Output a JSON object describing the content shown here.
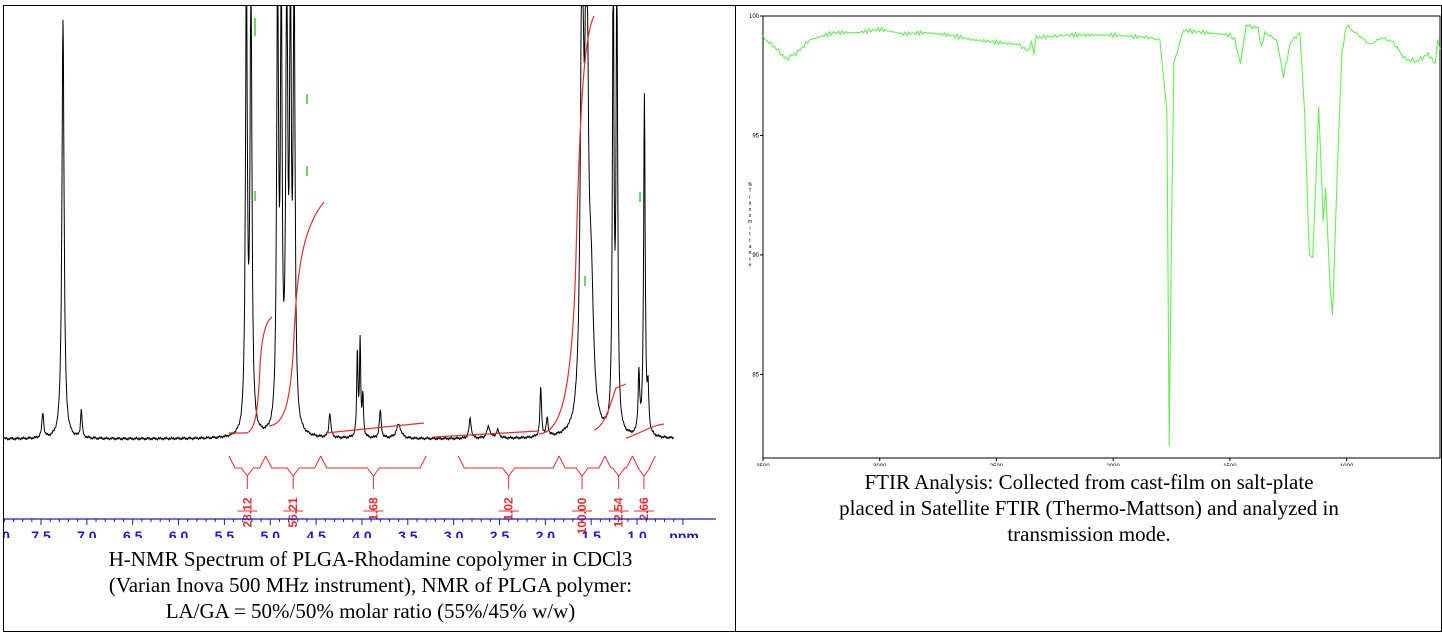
{
  "nmr": {
    "axis_unit": "ppm",
    "ticks": [
      "0",
      "7.5",
      "7.0",
      "6.5",
      "6.0",
      "5.5",
      "5.0",
      "4.5",
      "4.0",
      "3.5",
      "3.0",
      "2.5",
      "2.0",
      "1.5",
      "1.0"
    ],
    "integrals": [
      "28.12",
      "56.21",
      "1.68",
      "1.02",
      "100.00",
      "12.54",
      "2.66"
    ],
    "caption_lines": [
      "H-NMR Spectrum of PLGA-Rhodamine copolymer in CDCl3",
      "(Varian Inova 500 MHz instrument), NMR of PLGA polymer:",
      "LA/GA = 50%/50% molar ratio (55%/45% w/w)"
    ],
    "colors": {
      "spectrum": "#000000",
      "integral": "#e03030",
      "axis": "#1a1ac8"
    }
  },
  "ftir": {
    "x_ticks": [
      "3500",
      "3000",
      "2500",
      "2000",
      "1500",
      "1000"
    ],
    "y_ticks": [
      "100",
      "95",
      "90",
      "85"
    ],
    "y_label": "% Transmittance",
    "caption_lines": [
      "FTIR Analysis: Collected from cast-film on salt-plate",
      "placed in Satellite FTIR (Thermo-Mattson) and analyzed in",
      "transmission mode."
    ],
    "colors": {
      "spectrum": "#66ee55",
      "frame": "#000000"
    }
  },
  "chart_data": [
    {
      "type": "line",
      "title": "",
      "xlabel": "ppm",
      "ylabel": "",
      "xlim": [
        8.0,
        0.5
      ],
      "x_reversed": true,
      "peaks_ppm": [
        7.48,
        7.26,
        7.06,
        5.26,
        5.21,
        4.92,
        4.82,
        4.74,
        4.35,
        4.05,
        4.02,
        3.8,
        3.6,
        2.82,
        2.62,
        2.52,
        2.05,
        1.98,
        1.6,
        1.55,
        1.26,
        1.22,
        0.98,
        0.92
      ],
      "integrals": [
        {
          "label": "28.12",
          "range_ppm": [
            5.45,
            5.05
          ]
        },
        {
          "label": "56.21",
          "range_ppm": [
            5.05,
            4.45
          ]
        },
        {
          "label": "1.68",
          "range_ppm": [
            4.45,
            3.3
          ]
        },
        {
          "label": "1.02",
          "range_ppm": [
            2.95,
            1.85
          ]
        },
        {
          "label": "100.00",
          "range_ppm": [
            1.85,
            1.35
          ]
        },
        {
          "label": "12.54",
          "range_ppm": [
            1.35,
            1.05
          ]
        },
        {
          "label": "2.66",
          "range_ppm": [
            1.05,
            0.8
          ]
        }
      ]
    },
    {
      "type": "line",
      "title": "",
      "xlabel": "",
      "ylabel": "% Transmittance",
      "xlim": [
        3500,
        600
      ],
      "ylim": [
        81.5,
        100
      ],
      "x_reversed": true,
      "points": [
        [
          3500,
          99.1
        ],
        [
          3450,
          98.7
        ],
        [
          3400,
          98.2
        ],
        [
          3350,
          98.5
        ],
        [
          3300,
          99.0
        ],
        [
          3200,
          99.3
        ],
        [
          3100,
          99.3
        ],
        [
          3000,
          99.45
        ],
        [
          2900,
          99.25
        ],
        [
          2800,
          99.3
        ],
        [
          2700,
          99.2
        ],
        [
          2600,
          99.0
        ],
        [
          2500,
          98.9
        ],
        [
          2400,
          98.8
        ],
        [
          2365,
          98.5
        ],
        [
          2350,
          98.9
        ],
        [
          2340,
          98.4
        ],
        [
          2330,
          99.1
        ],
        [
          2200,
          99.2
        ],
        [
          2100,
          99.2
        ],
        [
          2000,
          99.2
        ],
        [
          1850,
          99.1
        ],
        [
          1800,
          99.0
        ],
        [
          1770,
          96.0
        ],
        [
          1760,
          82.0
        ],
        [
          1750,
          91.0
        ],
        [
          1740,
          98.0
        ],
        [
          1700,
          99.4
        ],
        [
          1600,
          99.3
        ],
        [
          1500,
          99.2
        ],
        [
          1480,
          99.0
        ],
        [
          1455,
          98.0
        ],
        [
          1430,
          99.6
        ],
        [
          1380,
          99.5
        ],
        [
          1365,
          98.7
        ],
        [
          1350,
          99.3
        ],
        [
          1300,
          99.0
        ],
        [
          1270,
          97.5
        ],
        [
          1240,
          98.9
        ],
        [
          1200,
          99.3
        ],
        [
          1180,
          96.0
        ],
        [
          1160,
          90.0
        ],
        [
          1145,
          89.9
        ],
        [
          1130,
          93.5
        ],
        [
          1120,
          96.2
        ],
        [
          1100,
          91.5
        ],
        [
          1090,
          92.8
        ],
        [
          1070,
          88.5
        ],
        [
          1060,
          87.5
        ],
        [
          1040,
          93.5
        ],
        [
          1020,
          98.5
        ],
        [
          1000,
          99.6
        ],
        [
          950,
          99.2
        ],
        [
          900,
          98.8
        ],
        [
          850,
          99.1
        ],
        [
          800,
          98.9
        ],
        [
          750,
          98.2
        ],
        [
          700,
          98.1
        ],
        [
          650,
          98.4
        ],
        [
          620,
          98.0
        ],
        [
          610,
          99.0
        ],
        [
          600,
          98.6
        ]
      ]
    }
  ]
}
